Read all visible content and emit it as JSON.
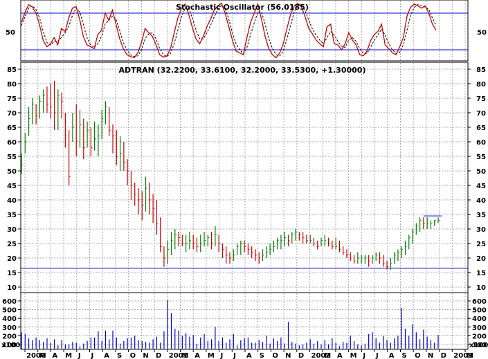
{
  "colors": {
    "background": "#ffffff",
    "grid": "#a8a8a8",
    "frame": "#000000",
    "bar_up": "#008000",
    "bar_down": "#cc0000",
    "volume": "#0000cc",
    "support_line": "#0000cc",
    "stoch_k": "#cc0000",
    "stoch_d": "#000000"
  },
  "chart_data": [
    {
      "type": "line",
      "title": "Stochastic Oscillator (56.0185)",
      "ytick_labels": [
        "50"
      ],
      "ylim": [
        0,
        100
      ],
      "reference_lines": [
        80,
        20
      ],
      "series": [
        {
          "values": [
            65,
            82,
            94,
            90,
            80,
            60,
            35,
            25,
            30,
            40,
            28,
            55,
            50,
            72,
            88,
            91,
            70,
            42,
            28,
            25,
            22,
            45,
            52,
            80,
            68,
            85,
            62,
            38,
            22,
            12,
            9,
            7,
            15,
            32,
            55,
            48,
            42,
            28,
            12,
            8,
            10,
            22,
            48,
            72,
            88,
            95,
            78,
            56,
            38,
            30,
            42,
            58,
            70,
            85,
            92,
            96,
            80,
            58,
            36,
            18,
            15,
            12,
            40,
            65,
            80,
            95,
            70,
            42,
            22,
            12,
            7,
            15,
            30,
            55,
            78,
            92,
            96,
            90,
            74,
            55,
            46,
            36,
            30,
            25,
            58,
            62,
            30,
            28,
            20,
            30,
            48,
            36,
            28,
            12,
            10,
            18,
            35,
            45,
            50,
            62,
            28,
            22,
            15,
            12,
            25,
            40,
            75,
            90,
            95,
            92,
            88,
            92,
            80,
            62,
            52
          ]
        },
        {
          "values": [
            60,
            75,
            88,
            92,
            86,
            72,
            50,
            32,
            28,
            34,
            34,
            40,
            48,
            58,
            76,
            88,
            82,
            62,
            40,
            28,
            24,
            30,
            42,
            62,
            68,
            75,
            70,
            52,
            32,
            20,
            12,
            9,
            10,
            20,
            38,
            46,
            48,
            38,
            22,
            12,
            9,
            14,
            30,
            52,
            74,
            88,
            88,
            72,
            52,
            38,
            38,
            48,
            60,
            74,
            86,
            92,
            88,
            70,
            48,
            30,
            20,
            14,
            24,
            45,
            64,
            82,
            82,
            62,
            38,
            22,
            12,
            10,
            18,
            38,
            60,
            82,
            92,
            94,
            84,
            68,
            54,
            44,
            36,
            30,
            40,
            50,
            44,
            34,
            26,
            24,
            36,
            40,
            34,
            22,
            14,
            14,
            24,
            36,
            44,
            54,
            44,
            30,
            20,
            14,
            16,
            28,
            52,
            76,
            90,
            94,
            92,
            90,
            86,
            72,
            60
          ]
        }
      ]
    },
    {
      "type": "bar",
      "title": "ADTRAN (32.2200, 33.6100, 32.2000, 33.5300, +1.30000)",
      "ytick_labels": [
        "85",
        "80",
        "75",
        "70",
        "65",
        "60",
        "55",
        "50",
        "45",
        "40",
        "35",
        "30",
        "25",
        "20",
        "15",
        "10"
      ],
      "ylim": [
        8,
        87
      ],
      "support_level": 16.5,
      "resistance_level": 34.5,
      "x": [
        "2000",
        "M",
        "A",
        "M",
        "J",
        "J",
        "A",
        "S",
        "O",
        "N",
        "D",
        "2001",
        "M",
        "A",
        "M",
        "J",
        "J",
        "A",
        "S",
        "O",
        "N",
        "D",
        "2002",
        "M",
        "A",
        "M",
        "J",
        "J",
        "A",
        "S",
        "O",
        "N",
        "D",
        "2003",
        "M"
      ],
      "ohlc_note": "weekly bars, [high, low, close] in dollars",
      "ohlc": [
        [
          56,
          49,
          52
        ],
        [
          63,
          56,
          60
        ],
        [
          72,
          62,
          68
        ],
        [
          75,
          66,
          73
        ],
        [
          73,
          66,
          69
        ],
        [
          76,
          68,
          74
        ],
        [
          78,
          70,
          76
        ],
        [
          79,
          70,
          73
        ],
        [
          80,
          68,
          72
        ],
        [
          81,
          64,
          70
        ],
        [
          78,
          64,
          76
        ],
        [
          77,
          68,
          74
        ],
        [
          70,
          58,
          62
        ],
        [
          64,
          45,
          48
        ],
        [
          70,
          60,
          65
        ],
        [
          73,
          55,
          60
        ],
        [
          71,
          58,
          66
        ],
        [
          68,
          54,
          58
        ],
        [
          67,
          58,
          64
        ],
        [
          65,
          55,
          58
        ],
        [
          67,
          57,
          61
        ],
        [
          66,
          55,
          62
        ],
        [
          71,
          61,
          68
        ],
        [
          74,
          66,
          72
        ],
        [
          72,
          62,
          64
        ],
        [
          66,
          56,
          62
        ],
        [
          64,
          52,
          55
        ],
        [
          62,
          50,
          56
        ],
        [
          60,
          50,
          53
        ],
        [
          54,
          45,
          50
        ],
        [
          50,
          40,
          45
        ],
        [
          46,
          38,
          42
        ],
        [
          44,
          35,
          40
        ],
        [
          43,
          33,
          38
        ],
        [
          48,
          36,
          44
        ],
        [
          46,
          35,
          40
        ],
        [
          42,
          32,
          37
        ],
        [
          40,
          28,
          32
        ],
        [
          34,
          22,
          24
        ],
        [
          24,
          17,
          20
        ],
        [
          26,
          18,
          23
        ],
        [
          29,
          21,
          26
        ],
        [
          30,
          23,
          28
        ],
        [
          29,
          24,
          27
        ],
        [
          28,
          24,
          25
        ],
        [
          28,
          22,
          25
        ],
        [
          29,
          23,
          26
        ],
        [
          28,
          23,
          25
        ],
        [
          27,
          22,
          24
        ],
        [
          28,
          22,
          25
        ],
        [
          29,
          24,
          26
        ],
        [
          28,
          24,
          27
        ],
        [
          29,
          23,
          25
        ],
        [
          31,
          24,
          28
        ],
        [
          28,
          22,
          25
        ],
        [
          25,
          20,
          23
        ],
        [
          24,
          18,
          21
        ],
        [
          22,
          18,
          20
        ],
        [
          23,
          19,
          21
        ],
        [
          25,
          21,
          24
        ],
        [
          26,
          21,
          25
        ],
        [
          26,
          22,
          24
        ],
        [
          25,
          21,
          23
        ],
        [
          24,
          20,
          22
        ],
        [
          23,
          19,
          21
        ],
        [
          22,
          18,
          20
        ],
        [
          23,
          19,
          21
        ],
        [
          24,
          20,
          22
        ],
        [
          25,
          21,
          23
        ],
        [
          26,
          22,
          24
        ],
        [
          27,
          23,
          26
        ],
        [
          28,
          23,
          26
        ],
        [
          29,
          24,
          27
        ],
        [
          28,
          24,
          26
        ],
        [
          29,
          25,
          28
        ],
        [
          30,
          26,
          29
        ],
        [
          29,
          26,
          28
        ],
        [
          29,
          25,
          27
        ],
        [
          28,
          25,
          26
        ],
        [
          28,
          25,
          26
        ],
        [
          27,
          24,
          25
        ],
        [
          26,
          23,
          24
        ],
        [
          27,
          24,
          26
        ],
        [
          28,
          24,
          26
        ],
        [
          27,
          24,
          25
        ],
        [
          26,
          23,
          24
        ],
        [
          27,
          23,
          24
        ],
        [
          26,
          22,
          23
        ],
        [
          24,
          21,
          22
        ],
        [
          23,
          20,
          21
        ],
        [
          22,
          19,
          20
        ],
        [
          21,
          18,
          19
        ],
        [
          22,
          18,
          20
        ],
        [
          21,
          18,
          20
        ],
        [
          21,
          18,
          20
        ],
        [
          21,
          17,
          19
        ],
        [
          21,
          18,
          20
        ],
        [
          22,
          19,
          21
        ],
        [
          22,
          18,
          20
        ],
        [
          21,
          17,
          18
        ],
        [
          19,
          16,
          17
        ],
        [
          20,
          16,
          18
        ],
        [
          22,
          18,
          21
        ],
        [
          23,
          19,
          22
        ],
        [
          24,
          20,
          23
        ],
        [
          26,
          21,
          24
        ],
        [
          28,
          23,
          27
        ],
        [
          30,
          25,
          29
        ],
        [
          32,
          28,
          31
        ],
        [
          34,
          29,
          33
        ],
        [
          34,
          30,
          32
        ],
        [
          34,
          30,
          32
        ],
        [
          33,
          30,
          32
        ],
        [
          33,
          31,
          33
        ],
        [
          34,
          32,
          33
        ]
      ]
    },
    {
      "type": "bar",
      "title": "",
      "ytick_labels": [
        "600",
        "500",
        "400",
        "300",
        "200",
        "100"
      ],
      "unit_label": "x100",
      "ylim": [
        0,
        650
      ],
      "values": [
        240,
        220,
        170,
        150,
        180,
        150,
        130,
        170,
        120,
        160,
        90,
        150,
        100,
        100,
        130,
        120,
        80,
        110,
        140,
        180,
        180,
        250,
        140,
        260,
        160,
        260,
        180,
        110,
        140,
        170,
        180,
        200,
        150,
        140,
        130,
        120,
        160,
        190,
        120,
        250,
        610,
        460,
        280,
        260,
        200,
        230,
        190,
        210,
        110,
        180,
        220,
        140,
        160,
        300,
        140,
        180,
        120,
        160,
        220,
        90,
        150,
        170,
        180,
        120,
        120,
        150,
        130,
        200,
        110,
        170,
        140,
        180,
        110,
        360,
        130,
        110,
        90,
        100,
        120,
        160,
        110,
        140,
        100,
        150,
        100,
        170,
        120,
        80,
        130,
        120,
        200,
        140,
        100,
        90,
        110,
        220,
        240,
        170,
        120,
        200,
        150,
        120,
        170,
        200,
        520,
        280,
        200,
        330,
        240,
        160,
        270,
        190,
        150,
        120,
        210
      ]
    }
  ],
  "stochastic_panel": {
    "title": "Stochastic Oscillator (56.0185)",
    "left_label": "50",
    "right_label": "50"
  },
  "price_panel": {
    "title": "ADTRAN (32.2200, 33.6100, 32.2000, 33.5300, +1.30000)",
    "left_labels": [
      "85",
      "80",
      "75",
      "70",
      "65",
      "60",
      "55",
      "50",
      "45",
      "40",
      "35",
      "30",
      "25",
      "20",
      "15",
      "10"
    ],
    "right_labels": [
      "85",
      "80",
      "75",
      "70",
      "65",
      "60",
      "55",
      "50",
      "45",
      "40",
      "35",
      "30",
      "25",
      "20",
      "15",
      "10"
    ]
  },
  "volume_panel": {
    "left_labels": [
      "600",
      "500",
      "400",
      "300",
      "200",
      "100"
    ],
    "right_labels": [
      "600",
      "500",
      "400",
      "300",
      "200",
      "100"
    ],
    "unit_label_left": "x100",
    "unit_label_right": "x100"
  },
  "month_axis": {
    "labels": [
      "2000",
      "M",
      "A",
      "M",
      "J",
      "J",
      "A",
      "S",
      "O",
      "N",
      "D",
      "2001",
      "M",
      "A",
      "M",
      "J",
      "J",
      "A",
      "S",
      "O",
      "N",
      "D",
      "2002",
      "M",
      "A",
      "M",
      "J",
      "J",
      "A",
      "S",
      "O",
      "N",
      "D",
      "2003",
      "M"
    ]
  }
}
